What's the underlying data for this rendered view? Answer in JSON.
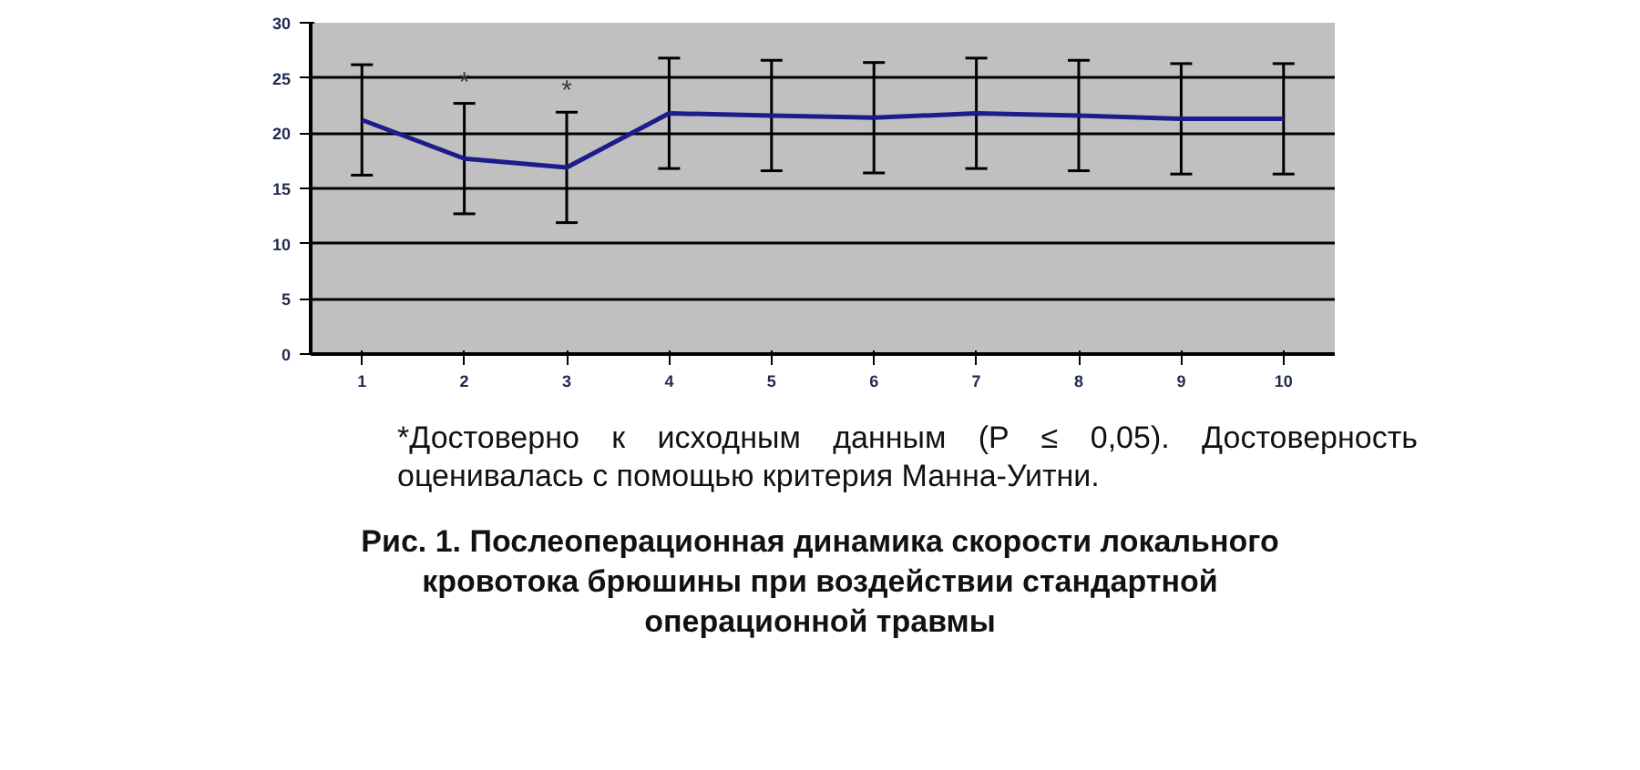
{
  "chart_data": {
    "type": "line",
    "title": "Рис. 1. Послеоперационная динамика скорости локального кровотока брюшины при воздействии стандартной операционной травмы",
    "categories": [
      "1",
      "2",
      "3",
      "4",
      "5",
      "6",
      "7",
      "8",
      "9",
      "10"
    ],
    "series": [
      {
        "color": "#1c1c8c",
        "values": [
          21.2,
          17.7,
          16.9,
          21.8,
          21.6,
          21.4,
          21.8,
          21.6,
          21.3,
          21.3
        ],
        "errors": [
          5,
          5,
          5,
          5,
          5,
          5,
          5,
          5,
          5,
          5
        ]
      }
    ],
    "ylim": [
      0,
      30
    ],
    "yticks": [
      0,
      5,
      10,
      15,
      20,
      25,
      30
    ],
    "grid": "y",
    "marker": "none",
    "line_style": "solid",
    "annotations": [
      {
        "text": "*",
        "x": "2",
        "y": 22.7
      },
      {
        "text": "*",
        "x": "3",
        "y": 21.9
      },
      "*Достоверно к исходным данным (P ≤ 0,05). Достоверность оценивалась с помощью критерия Манна-Уитни."
    ]
  }
}
